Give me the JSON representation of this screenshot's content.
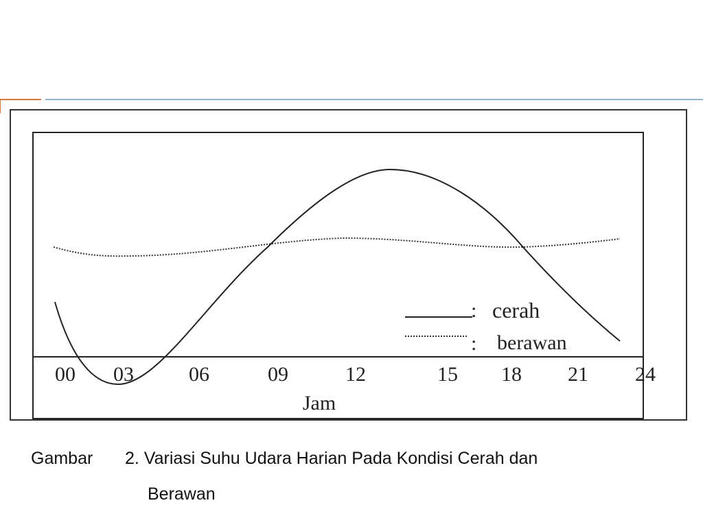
{
  "figure": {
    "x_tick_labels": [
      "00",
      "03",
      "06",
      "09",
      "12",
      "15",
      "18",
      "21",
      "24"
    ],
    "x_label": "Jam",
    "legend": [
      {
        "separator": ":",
        "label": "cerah"
      },
      {
        "separator": ":",
        "label": "berawan"
      }
    ]
  },
  "caption": {
    "prefix": "Gambar",
    "text": "2. Variasi Suhu Udara Harian Pada Kondisi Cerah dan",
    "continuation": "Berawan"
  }
}
